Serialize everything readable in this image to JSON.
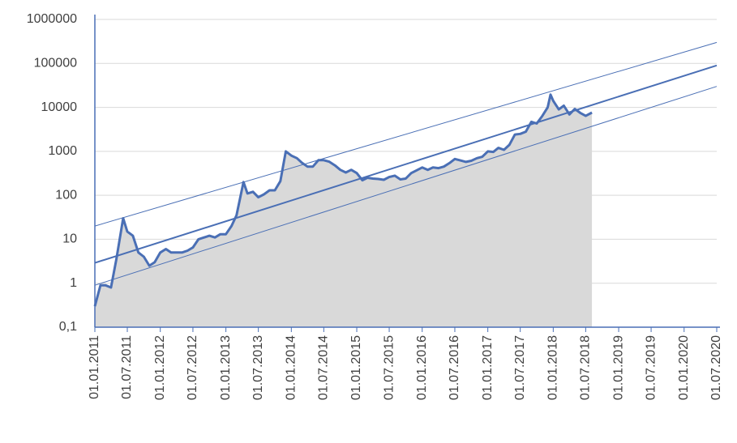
{
  "chart_data": {
    "type": "line",
    "log_scale_y": true,
    "grid": true,
    "area_color": "#d9d9d9",
    "xlim": [
      "2011-01-01",
      "2020-07-01"
    ],
    "xticks": [
      {
        "value": "2011-01-01",
        "label": "01.01.2011"
      },
      {
        "value": "2011-07-01",
        "label": "01.07.2011"
      },
      {
        "value": "2012-01-01",
        "label": "01.01.2012"
      },
      {
        "value": "2012-07-01",
        "label": "01.07.2012"
      },
      {
        "value": "2013-01-01",
        "label": "01.01.2013"
      },
      {
        "value": "2013-07-01",
        "label": "01.07.2013"
      },
      {
        "value": "2014-01-01",
        "label": "01.01.2014"
      },
      {
        "value": "2014-07-01",
        "label": "01.07.2014"
      },
      {
        "value": "2015-01-01",
        "label": "01.01.2015"
      },
      {
        "value": "2015-07-01",
        "label": "01.07.2015"
      },
      {
        "value": "2016-01-01",
        "label": "01.01.2016"
      },
      {
        "value": "2016-07-01",
        "label": "01.07.2016"
      },
      {
        "value": "2017-01-01",
        "label": "01.01.2017"
      },
      {
        "value": "2017-07-01",
        "label": "01.07.2017"
      },
      {
        "value": "2018-01-01",
        "label": "01.01.2018"
      },
      {
        "value": "2018-07-01",
        "label": "01.07.2018"
      },
      {
        "value": "2019-01-01",
        "label": "01.01.2019"
      },
      {
        "value": "2019-07-01",
        "label": "01.07.2019"
      },
      {
        "value": "2020-01-01",
        "label": "01.01.2020"
      },
      {
        "value": "2020-07-01",
        "label": "01.07.2020"
      }
    ],
    "ylim": [
      0.1,
      1000000
    ],
    "yticks": [
      {
        "value": 0.1,
        "label": "0,1"
      },
      1,
      10,
      100,
      1000,
      10000,
      100000,
      1000000
    ],
    "series": [
      {
        "color": "#4a6fb5",
        "width": 3,
        "area": true,
        "x": [
          "2011-01-01",
          "2011-02-01",
          "2011-03-01",
          "2011-04-01",
          "2011-05-01",
          "2011-06-08",
          "2011-07-01",
          "2011-08-01",
          "2011-09-01",
          "2011-10-01",
          "2011-11-01",
          "2011-12-01",
          "2012-01-01",
          "2012-02-01",
          "2012-03-01",
          "2012-04-01",
          "2012-05-01",
          "2012-06-01",
          "2012-07-01",
          "2012-08-01",
          "2012-09-01",
          "2012-10-01",
          "2012-11-01",
          "2012-12-01",
          "2013-01-01",
          "2013-02-01",
          "2013-03-01",
          "2013-04-09",
          "2013-05-01",
          "2013-06-01",
          "2013-07-01",
          "2013-08-01",
          "2013-09-01",
          "2013-10-01",
          "2013-11-01",
          "2013-12-01",
          "2014-01-01",
          "2014-02-01",
          "2014-03-01",
          "2014-04-01",
          "2014-05-01",
          "2014-06-01",
          "2014-07-01",
          "2014-08-01",
          "2014-09-01",
          "2014-10-01",
          "2014-11-01",
          "2014-12-01",
          "2015-01-01",
          "2015-02-01",
          "2015-03-01",
          "2015-04-01",
          "2015-05-01",
          "2015-06-01",
          "2015-07-01",
          "2015-08-01",
          "2015-09-01",
          "2015-10-01",
          "2015-11-01",
          "2015-12-01",
          "2016-01-01",
          "2016-02-01",
          "2016-03-01",
          "2016-04-01",
          "2016-05-01",
          "2016-06-01",
          "2016-07-01",
          "2016-08-01",
          "2016-09-01",
          "2016-10-01",
          "2016-11-01",
          "2016-12-01",
          "2017-01-01",
          "2017-02-01",
          "2017-03-01",
          "2017-04-01",
          "2017-05-01",
          "2017-06-01",
          "2017-07-01",
          "2017-08-01",
          "2017-09-01",
          "2017-10-01",
          "2017-11-01",
          "2017-12-01",
          "2017-12-17",
          "2018-01-01",
          "2018-02-01",
          "2018-03-01",
          "2018-04-01",
          "2018-05-01",
          "2018-06-01",
          "2018-07-01",
          "2018-08-05"
        ],
        "values": [
          0.3,
          0.9,
          0.9,
          0.8,
          3.5,
          30,
          15,
          12,
          5,
          4,
          2.5,
          3,
          5,
          6,
          5,
          5,
          5,
          5.5,
          6.5,
          10,
          11,
          12,
          11,
          13,
          13,
          20,
          35,
          200,
          110,
          120,
          90,
          105,
          130,
          130,
          210,
          1000,
          800,
          700,
          550,
          450,
          450,
          630,
          630,
          580,
          480,
          380,
          330,
          380,
          320,
          220,
          250,
          240,
          235,
          225,
          260,
          280,
          230,
          240,
          320,
          370,
          430,
          380,
          430,
          415,
          450,
          540,
          670,
          620,
          575,
          610,
          700,
          750,
          1000,
          970,
          1200,
          1080,
          1400,
          2400,
          2500,
          2800,
          4700,
          4300,
          6400,
          10000,
          19500,
          14000,
          9000,
          10900,
          6900,
          9200,
          7500,
          6400,
          7600
        ]
      },
      {
        "color": "#4a6fb5",
        "width": 2,
        "x": [
          "2011-01-01",
          "2020-07-01"
        ],
        "values": [
          2.9,
          90000
        ]
      },
      {
        "color": "#4a6fb5",
        "width": 1,
        "x": [
          "2011-01-01",
          "2020-07-01"
        ],
        "values": [
          20,
          300000
        ]
      },
      {
        "color": "#4a6fb5",
        "width": 1,
        "x": [
          "2011-01-01",
          "2020-07-01"
        ],
        "values": [
          0.9,
          30000
        ]
      }
    ]
  }
}
